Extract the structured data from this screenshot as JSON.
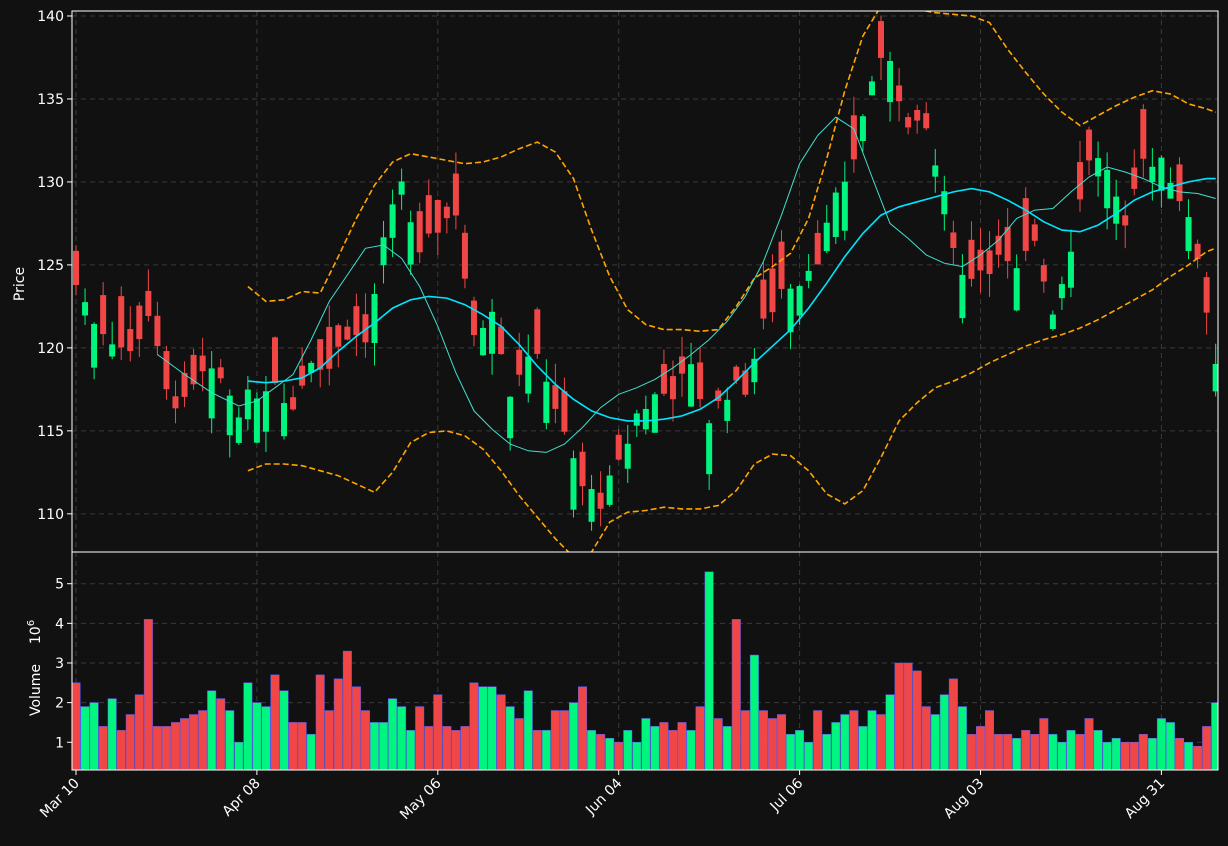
{
  "colors": {
    "background": "#111111",
    "axes_border": "#ffffff",
    "text": "#ffffff",
    "grid": "#3a3a3a",
    "up": "#00f57f",
    "down": "#f04646",
    "up_edge": "#00f57f",
    "down_edge": "#f04646",
    "volume_edge": "#6060ff",
    "ma_fast": "#40e0d0",
    "ma_slow": "#00e5ff",
    "bollinger": "#ffa500"
  },
  "chart_data": {
    "type": "candlestick",
    "ylabel_price": "Price",
    "ylabel_volume": "Volume",
    "volume_exponent": "10",
    "volume_exponent_power": "6",
    "price_ylim": [
      107.7,
      140.3
    ],
    "price_ticks": [
      110,
      115,
      120,
      125,
      130,
      135,
      140
    ],
    "volume_ylim": [
      0.3,
      5.8
    ],
    "volume_ticks": [
      1,
      2,
      3,
      4,
      5
    ],
    "grid": true,
    "x_tick_labels": [
      {
        "label": "Mar 10",
        "index": 0
      },
      {
        "label": "Apr 08",
        "index": 20
      },
      {
        "label": "May 06",
        "index": 40
      },
      {
        "label": "Jun 04",
        "index": 60
      },
      {
        "label": "Jul 06",
        "index": 80
      },
      {
        "label": "Aug 03",
        "index": 100
      },
      {
        "label": "Aug 31",
        "index": 120
      }
    ],
    "n_bars": 127,
    "close_points": [
      [
        0,
        123.8
      ],
      [
        2,
        121.7
      ],
      [
        4,
        120.6
      ],
      [
        6,
        119.6
      ],
      [
        8,
        122.1
      ],
      [
        10,
        117.2
      ],
      [
        12,
        116.5
      ],
      [
        14,
        118.3
      ],
      [
        16,
        118.1
      ],
      [
        18,
        116.4
      ],
      [
        20,
        117.4
      ],
      [
        22,
        118.2
      ],
      [
        24,
        116.3
      ],
      [
        26,
        119.5
      ],
      [
        28,
        118.8
      ],
      [
        30,
        121.0
      ],
      [
        32,
        120.3
      ],
      [
        34,
        126.2
      ],
      [
        36,
        130.1
      ],
      [
        38,
        125.3
      ],
      [
        40,
        127.3
      ],
      [
        42,
        128.3
      ],
      [
        44,
        120.3
      ],
      [
        46,
        122.7
      ],
      [
        48,
        117.5
      ],
      [
        50,
        119.8
      ],
      [
        52,
        118.4
      ],
      [
        54,
        114.6
      ],
      [
        56,
        111.6
      ],
      [
        58,
        110.8
      ],
      [
        60,
        112.8
      ],
      [
        62,
        116.0
      ],
      [
        64,
        117.1
      ],
      [
        66,
        117.4
      ],
      [
        68,
        118.6
      ],
      [
        70,
        115.7
      ],
      [
        72,
        117.4
      ],
      [
        74,
        117.6
      ],
      [
        76,
        121.3
      ],
      [
        78,
        123.6
      ],
      [
        80,
        124.2
      ],
      [
        82,
        125.6
      ],
      [
        84,
        128.8
      ],
      [
        86,
        131.5
      ],
      [
        88,
        136.2
      ],
      [
        90,
        137.6
      ],
      [
        92,
        133.1
      ],
      [
        94,
        133.1
      ],
      [
        96,
        128.9
      ],
      [
        98,
        124.3
      ],
      [
        100,
        124.8
      ],
      [
        102,
        125.3
      ],
      [
        104,
        124.4
      ],
      [
        106,
        126.6
      ],
      [
        108,
        122.2
      ],
      [
        110,
        126.3
      ],
      [
        112,
        131.6
      ],
      [
        114,
        130.9
      ],
      [
        116,
        126.8
      ],
      [
        118,
        131.2
      ],
      [
        120,
        131.5
      ],
      [
        122,
        129.2
      ],
      [
        124,
        125.6
      ],
      [
        126,
        119.2
      ]
    ],
    "ma_fast_points": [
      [
        9,
        119.6
      ],
      [
        12,
        118.4
      ],
      [
        15,
        117.3
      ],
      [
        18,
        116.5
      ],
      [
        20,
        116.8
      ],
      [
        22,
        117.6
      ],
      [
        24,
        118.4
      ],
      [
        26,
        120.5
      ],
      [
        28,
        122.8
      ],
      [
        30,
        124.4
      ],
      [
        32,
        126.0
      ],
      [
        34,
        126.2
      ],
      [
        36,
        125.4
      ],
      [
        38,
        123.7
      ],
      [
        40,
        121.3
      ],
      [
        42,
        118.5
      ],
      [
        44,
        116.2
      ],
      [
        46,
        115.1
      ],
      [
        48,
        114.2
      ],
      [
        50,
        113.8
      ],
      [
        52,
        113.7
      ],
      [
        54,
        114.2
      ],
      [
        56,
        115.2
      ],
      [
        58,
        116.4
      ],
      [
        60,
        117.2
      ],
      [
        62,
        117.6
      ],
      [
        64,
        118.1
      ],
      [
        66,
        118.8
      ],
      [
        68,
        119.6
      ],
      [
        70,
        120.5
      ],
      [
        72,
        121.6
      ],
      [
        74,
        123.1
      ],
      [
        76,
        125.2
      ],
      [
        78,
        128.0
      ],
      [
        80,
        131.1
      ],
      [
        82,
        132.8
      ],
      [
        84,
        133.9
      ],
      [
        86,
        133.2
      ],
      [
        88,
        130.3
      ],
      [
        90,
        127.5
      ],
      [
        92,
        126.6
      ],
      [
        94,
        125.6
      ],
      [
        96,
        125.1
      ],
      [
        98,
        124.9
      ],
      [
        100,
        125.6
      ],
      [
        102,
        126.5
      ],
      [
        104,
        127.8
      ],
      [
        106,
        128.3
      ],
      [
        108,
        128.4
      ],
      [
        110,
        129.4
      ],
      [
        112,
        130.3
      ],
      [
        114,
        130.9
      ],
      [
        116,
        130.6
      ],
      [
        118,
        130.2
      ],
      [
        120,
        129.7
      ],
      [
        122,
        129.4
      ],
      [
        124,
        129.3
      ],
      [
        126,
        129.0
      ]
    ],
    "ma_slow_points": [
      [
        19,
        118.0
      ],
      [
        21,
        117.9
      ],
      [
        23,
        118.0
      ],
      [
        25,
        118.2
      ],
      [
        27,
        118.8
      ],
      [
        29,
        119.8
      ],
      [
        31,
        120.7
      ],
      [
        33,
        121.5
      ],
      [
        35,
        122.4
      ],
      [
        37,
        122.9
      ],
      [
        39,
        123.1
      ],
      [
        41,
        123.0
      ],
      [
        43,
        122.6
      ],
      [
        45,
        122.0
      ],
      [
        47,
        121.3
      ],
      [
        49,
        120.2
      ],
      [
        51,
        118.9
      ],
      [
        53,
        117.8
      ],
      [
        55,
        116.9
      ],
      [
        57,
        116.2
      ],
      [
        59,
        115.8
      ],
      [
        61,
        115.6
      ],
      [
        63,
        115.6
      ],
      [
        65,
        115.7
      ],
      [
        67,
        115.9
      ],
      [
        69,
        116.3
      ],
      [
        71,
        117.0
      ],
      [
        73,
        118.0
      ],
      [
        75,
        119.1
      ],
      [
        77,
        120.1
      ],
      [
        79,
        121.1
      ],
      [
        81,
        122.4
      ],
      [
        83,
        123.9
      ],
      [
        85,
        125.5
      ],
      [
        87,
        126.9
      ],
      [
        89,
        128.0
      ],
      [
        91,
        128.5
      ],
      [
        93,
        128.8
      ],
      [
        95,
        129.1
      ],
      [
        97,
        129.4
      ],
      [
        99,
        129.6
      ],
      [
        101,
        129.4
      ],
      [
        103,
        128.9
      ],
      [
        105,
        128.3
      ],
      [
        107,
        127.6
      ],
      [
        109,
        127.1
      ],
      [
        111,
        127.0
      ],
      [
        113,
        127.4
      ],
      [
        115,
        128.1
      ],
      [
        117,
        128.9
      ],
      [
        119,
        129.4
      ],
      [
        121,
        129.7
      ],
      [
        123,
        130.0
      ],
      [
        125,
        130.2
      ],
      [
        126,
        130.2
      ]
    ],
    "bollinger_upper_points": [
      [
        19,
        123.7
      ],
      [
        21,
        122.8
      ],
      [
        23,
        122.9
      ],
      [
        25,
        123.4
      ],
      [
        27,
        123.3
      ],
      [
        29,
        125.5
      ],
      [
        31,
        127.8
      ],
      [
        33,
        129.8
      ],
      [
        35,
        131.2
      ],
      [
        37,
        131.7
      ],
      [
        39,
        131.5
      ],
      [
        41,
        131.3
      ],
      [
        43,
        131.1
      ],
      [
        45,
        131.2
      ],
      [
        47,
        131.5
      ],
      [
        49,
        132.0
      ],
      [
        51,
        132.4
      ],
      [
        53,
        131.8
      ],
      [
        55,
        130.2
      ],
      [
        57,
        127.1
      ],
      [
        59,
        124.3
      ],
      [
        61,
        122.3
      ],
      [
        63,
        121.4
      ],
      [
        65,
        121.1
      ],
      [
        67,
        121.1
      ],
      [
        69,
        121.0
      ],
      [
        71,
        121.1
      ],
      [
        73,
        122.5
      ],
      [
        75,
        124.2
      ],
      [
        77,
        124.9
      ],
      [
        79,
        125.7
      ],
      [
        81,
        127.8
      ],
      [
        83,
        131.4
      ],
      [
        85,
        135.5
      ],
      [
        87,
        138.8
      ],
      [
        89,
        140.6
      ],
      [
        91,
        140.6
      ],
      [
        93,
        140.4
      ],
      [
        95,
        140.2
      ],
      [
        97,
        140.1
      ],
      [
        99,
        140.0
      ],
      [
        101,
        139.6
      ],
      [
        103,
        138.0
      ],
      [
        105,
        136.6
      ],
      [
        107,
        135.3
      ],
      [
        109,
        134.2
      ],
      [
        111,
        133.4
      ],
      [
        113,
        134.0
      ],
      [
        115,
        134.6
      ],
      [
        117,
        135.1
      ],
      [
        119,
        135.5
      ],
      [
        121,
        135.3
      ],
      [
        123,
        134.7
      ],
      [
        125,
        134.4
      ],
      [
        126,
        134.2
      ]
    ],
    "bollinger_lower_points": [
      [
        19,
        112.6
      ],
      [
        21,
        113.0
      ],
      [
        23,
        113.0
      ],
      [
        25,
        112.9
      ],
      [
        27,
        112.6
      ],
      [
        29,
        112.3
      ],
      [
        31,
        111.8
      ],
      [
        33,
        111.3
      ],
      [
        35,
        112.5
      ],
      [
        37,
        114.3
      ],
      [
        39,
        114.9
      ],
      [
        41,
        115.0
      ],
      [
        43,
        114.7
      ],
      [
        45,
        113.9
      ],
      [
        47,
        112.6
      ],
      [
        49,
        111.1
      ],
      [
        51,
        109.8
      ],
      [
        53,
        108.5
      ],
      [
        55,
        107.4
      ],
      [
        57,
        107.7
      ],
      [
        59,
        109.5
      ],
      [
        61,
        110.1
      ],
      [
        63,
        110.2
      ],
      [
        65,
        110.4
      ],
      [
        67,
        110.3
      ],
      [
        69,
        110.3
      ],
      [
        71,
        110.5
      ],
      [
        73,
        111.4
      ],
      [
        75,
        113.0
      ],
      [
        77,
        113.6
      ],
      [
        79,
        113.5
      ],
      [
        81,
        112.6
      ],
      [
        83,
        111.2
      ],
      [
        85,
        110.6
      ],
      [
        87,
        111.4
      ],
      [
        89,
        113.4
      ],
      [
        91,
        115.6
      ],
      [
        93,
        116.7
      ],
      [
        95,
        117.6
      ],
      [
        97,
        118.0
      ],
      [
        99,
        118.5
      ],
      [
        101,
        119.1
      ],
      [
        103,
        119.6
      ],
      [
        105,
        120.1
      ],
      [
        107,
        120.5
      ],
      [
        109,
        120.8
      ],
      [
        111,
        121.2
      ],
      [
        113,
        121.7
      ],
      [
        115,
        122.3
      ],
      [
        117,
        122.9
      ],
      [
        119,
        123.5
      ],
      [
        121,
        124.3
      ],
      [
        123,
        125.0
      ],
      [
        125,
        125.8
      ],
      [
        126,
        126.0
      ]
    ],
    "volume_values": [
      2.5,
      1.9,
      2.0,
      1.4,
      2.1,
      1.3,
      1.7,
      2.2,
      4.1,
      1.4,
      1.4,
      1.5,
      1.6,
      1.7,
      1.8,
      2.3,
      2.1,
      1.8,
      1.0,
      2.5,
      2.0,
      1.9,
      2.7,
      2.3,
      1.5,
      1.5,
      1.2,
      2.7,
      1.8,
      2.6,
      3.3,
      2.4,
      1.8,
      1.5,
      1.5,
      2.1,
      1.9,
      1.3,
      1.9,
      1.4,
      2.2,
      1.4,
      1.3,
      1.4,
      2.5,
      2.4,
      2.4,
      2.2,
      1.9,
      1.6,
      2.3,
      1.3,
      1.3,
      1.8,
      1.8,
      2.0,
      2.4,
      1.3,
      1.2,
      1.1,
      1.0,
      1.3,
      1.0,
      1.6,
      1.4,
      1.5,
      1.3,
      1.5,
      1.3,
      1.9,
      5.3,
      1.6,
      1.4,
      4.1,
      1.8,
      3.2,
      1.8,
      1.6,
      1.7,
      1.2,
      1.3,
      1.0,
      1.8,
      1.2,
      1.5,
      1.7,
      1.8,
      1.4,
      1.8,
      1.7,
      2.2,
      3.0,
      3.0,
      2.8,
      1.9,
      1.7,
      2.2,
      2.6,
      1.9,
      1.2,
      1.4,
      1.8,
      1.2,
      1.2,
      1.1,
      1.3,
      1.2,
      1.6,
      1.2,
      1.0,
      1.3,
      1.2,
      1.6,
      1.3,
      1.0,
      1.1,
      1.0,
      1.0,
      1.2,
      1.1,
      1.6,
      1.5,
      1.1,
      1.0,
      0.9,
      1.4,
      2.0
    ]
  }
}
